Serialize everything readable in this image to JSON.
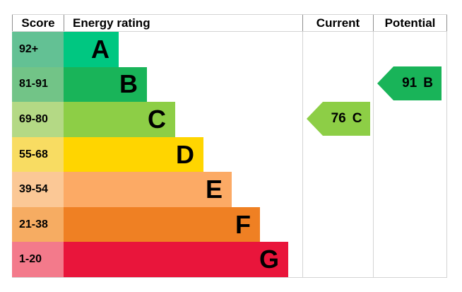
{
  "header": {
    "score": "Score",
    "energy_rating": "Energy rating",
    "current": "Current",
    "potential": "Potential"
  },
  "bands": [
    {
      "score_range": "92+",
      "letter": "A",
      "bar_color": "#00c781",
      "score_bg": "#63c194"
    },
    {
      "score_range": "81-91",
      "letter": "B",
      "bar_color": "#19b459",
      "score_bg": "#72c487"
    },
    {
      "score_range": "69-80",
      "letter": "C",
      "bar_color": "#8dce46",
      "score_bg": "#b4d985"
    },
    {
      "score_range": "55-68",
      "letter": "D",
      "bar_color": "#ffd500",
      "score_bg": "#f8dc62"
    },
    {
      "score_range": "39-54",
      "letter": "E",
      "bar_color": "#fcaa65",
      "score_bg": "#fbc896"
    },
    {
      "score_range": "21-38",
      "letter": "F",
      "bar_color": "#ef8023",
      "score_bg": "#f6ac62"
    },
    {
      "score_range": "1-20",
      "letter": "G",
      "bar_color": "#e9153b",
      "score_bg": "#f37a8b"
    }
  ],
  "current_arrow": {
    "value": "76",
    "band": "C",
    "color": "#8dce46"
  },
  "potential_arrow": {
    "value": "91",
    "band": "B",
    "color": "#19b459"
  },
  "chart_data": {
    "type": "bar",
    "orientation": "horizontal",
    "title": "Energy rating",
    "categories": [
      "A",
      "B",
      "C",
      "D",
      "E",
      "F",
      "G"
    ],
    "score_ranges": [
      "92+",
      "81-91",
      "69-80",
      "55-68",
      "39-54",
      "21-38",
      "1-20"
    ],
    "bar_lengths_relative": [
      1.0,
      1.5,
      2.0,
      2.5,
      3.0,
      3.5,
      4.1
    ],
    "band_colors": {
      "A": "#00c781",
      "B": "#19b459",
      "C": "#8dce46",
      "D": "#ffd500",
      "E": "#fcaa65",
      "F": "#ef8023",
      "G": "#e9153b"
    },
    "current": {
      "value": 76,
      "band": "C"
    },
    "potential": {
      "value": 91,
      "band": "B"
    },
    "grid": false,
    "legend_position": "none"
  }
}
